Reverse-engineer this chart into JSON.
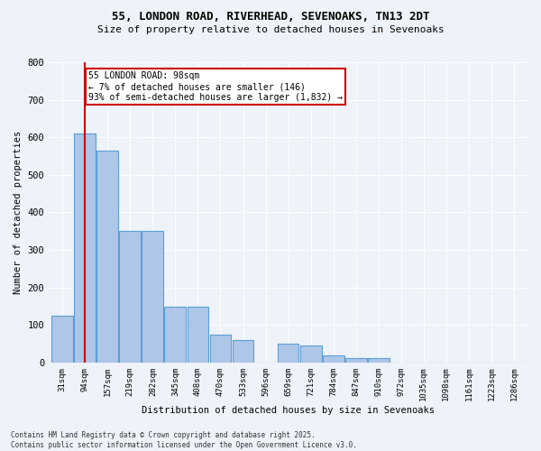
{
  "title_line1": "55, LONDON ROAD, RIVERHEAD, SEVENOAKS, TN13 2DT",
  "title_line2": "Size of property relative to detached houses in Sevenoaks",
  "xlabel": "Distribution of detached houses by size in Sevenoaks",
  "ylabel": "Number of detached properties",
  "categories": [
    "31sqm",
    "94sqm",
    "157sqm",
    "219sqm",
    "282sqm",
    "345sqm",
    "408sqm",
    "470sqm",
    "533sqm",
    "596sqm",
    "659sqm",
    "721sqm",
    "784sqm",
    "847sqm",
    "910sqm",
    "972sqm",
    "1035sqm",
    "1098sqm",
    "1161sqm",
    "1223sqm",
    "1286sqm"
  ],
  "values": [
    125,
    610,
    565,
    350,
    350,
    150,
    150,
    75,
    60,
    0,
    50,
    45,
    20,
    12,
    12,
    0,
    0,
    0,
    0,
    0,
    0
  ],
  "bar_color": "#aec6e8",
  "bar_edge_color": "#5a9fd4",
  "annotation_text": "55 LONDON ROAD: 98sqm\n← 7% of detached houses are smaller (146)\n93% of semi-detached houses are larger (1,832) →",
  "vline_x_index": 1,
  "vline_color": "#cc0000",
  "annotation_box_color": "#ffffff",
  "annotation_box_edge": "#cc0000",
  "footer_line1": "Contains HM Land Registry data © Crown copyright and database right 2025.",
  "footer_line2": "Contains public sector information licensed under the Open Government Licence v3.0.",
  "bg_color": "#eef2f9",
  "grid_color": "#ffffff",
  "ylim": [
    0,
    800
  ],
  "yticks": [
    0,
    100,
    200,
    300,
    400,
    500,
    600,
    700,
    800
  ]
}
